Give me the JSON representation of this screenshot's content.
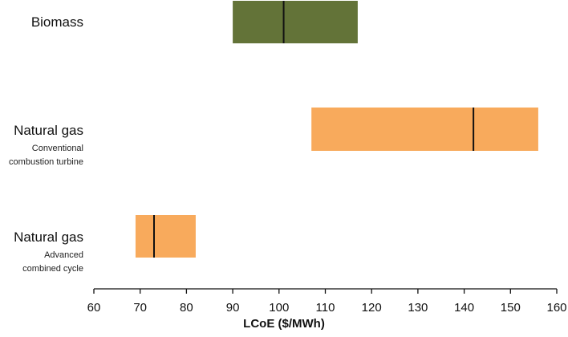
{
  "chart_data": {
    "type": "range-bar",
    "xlabel": "LCoE ($/MWh)",
    "xlim": [
      60,
      160
    ],
    "xticks": [
      60,
      70,
      80,
      90,
      100,
      110,
      120,
      130,
      140,
      150,
      160
    ],
    "categories": [
      {
        "title": "Biomass",
        "subtitle": [],
        "min": 90,
        "max": 117,
        "marker": 101,
        "color": "#637338"
      },
      {
        "title": "Natural gas",
        "subtitle": [
          "Conventional",
          "combustion turbine"
        ],
        "min": 107,
        "max": 156,
        "marker": 142,
        "color": "#f8aa5c"
      },
      {
        "title": "Natural gas",
        "subtitle": [
          "Advanced",
          "combined cycle"
        ],
        "min": 69,
        "max": 82,
        "marker": 73,
        "color": "#f8aa5c"
      }
    ]
  }
}
